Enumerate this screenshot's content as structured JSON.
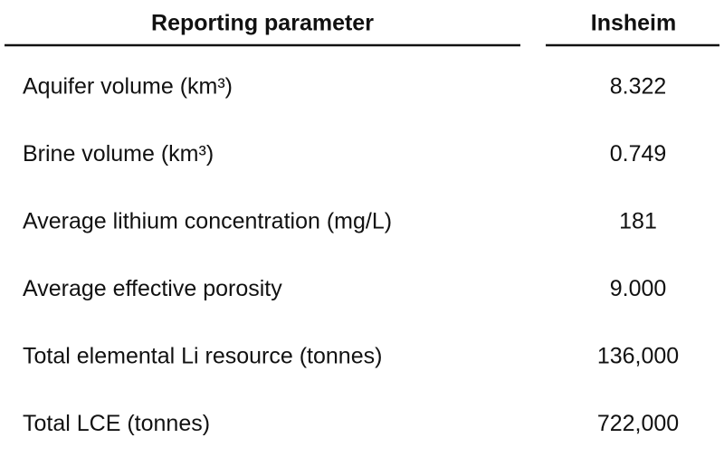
{
  "table": {
    "header": [
      "Reporting parameter",
      "Insheim"
    ],
    "rows": [
      [
        "Aquifer volume (km³)",
        "8.322"
      ],
      [
        "Brine volume (km³)",
        "0.749"
      ],
      [
        "Average lithium concentration (mg/L)",
        "181"
      ],
      [
        "Average effective porosity",
        "9.000"
      ],
      [
        "Total elemental Li resource (tonnes)",
        "136,000"
      ],
      [
        "Total LCE (tonnes)",
        "722,000"
      ]
    ]
  }
}
